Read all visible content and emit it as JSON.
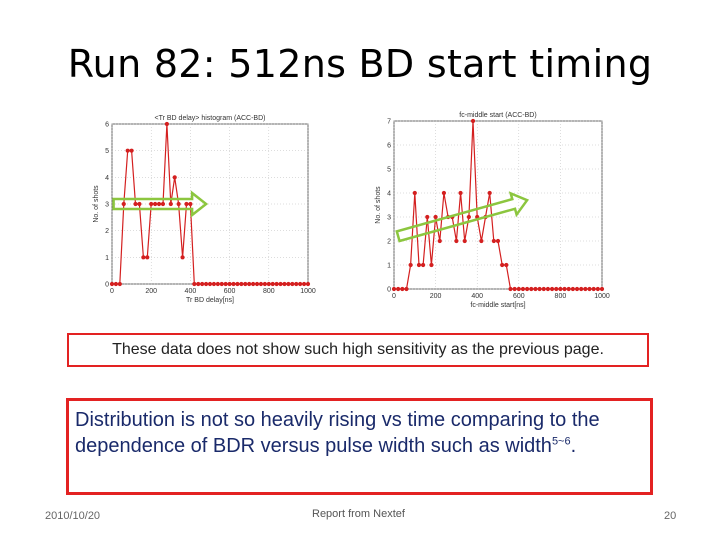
{
  "slide": {
    "title": "Run 82:  512ns  BD start timing",
    "note": "These data does not show such high sensitivity as the previous page.",
    "comment_main": "Distribution is not so heavily rising vs time comparing to the dependence of BDR versus pulse width such as width",
    "comment_sup": "5~6",
    "comment_end": ".",
    "footer_date": "2010/10/20",
    "footer_source": "Report from Nextef",
    "page_number": "20"
  },
  "colors": {
    "series": "#d42020",
    "arrow": "#8cc63f",
    "box_border": "#e32222",
    "text_blue": "#1a2a6a"
  },
  "chart_data": [
    {
      "type": "line",
      "title": "<Tr BD delay> histogram (ACC-BD)",
      "xlabel": "Tr BD delay[ns]",
      "ylabel": "No. of shots",
      "xlim": [
        0,
        1000
      ],
      "ylim": [
        0,
        6
      ],
      "xticks": [
        0,
        200,
        400,
        600,
        800,
        1000
      ],
      "xtick_labels": [
        "0",
        "200",
        "400",
        "600",
        "800",
        "1000"
      ],
      "yticks": [
        0,
        1,
        2,
        3,
        4,
        5,
        6
      ],
      "grid": true,
      "annotation": "green arrow pointing right",
      "x": [
        0,
        20,
        40,
        60,
        80,
        100,
        120,
        140,
        160,
        180,
        200,
        220,
        240,
        260,
        280,
        300,
        320,
        340,
        360,
        380,
        400,
        420,
        440,
        460,
        480,
        500,
        520,
        540,
        560,
        580,
        600,
        620,
        640,
        660,
        680,
        700,
        720,
        740,
        760,
        780,
        800,
        820,
        840,
        860,
        880,
        900,
        920,
        940,
        960,
        980,
        1000
      ],
      "y": [
        0,
        0,
        0,
        3,
        5,
        5,
        3,
        3,
        1,
        1,
        3,
        3,
        3,
        3,
        6,
        3,
        4,
        3,
        1,
        3,
        3,
        0,
        0,
        0,
        0,
        0,
        0,
        0,
        0,
        0,
        0,
        0,
        0,
        0,
        0,
        0,
        0,
        0,
        0,
        0,
        0,
        0,
        0,
        0,
        0,
        0,
        0,
        0,
        0,
        0,
        0
      ]
    },
    {
      "type": "line",
      "title": "fc-middle start (ACC-BD)",
      "xlabel": "fc-middle start[ns]",
      "ylabel": "No. of shots",
      "xlim": [
        0,
        1000
      ],
      "ylim": [
        0,
        7
      ],
      "xticks": [
        0,
        200,
        400,
        600,
        800,
        1000
      ],
      "xtick_labels": [
        "0",
        "200",
        "400",
        "600",
        "800",
        "1000"
      ],
      "yticks": [
        0,
        1,
        2,
        3,
        4,
        5,
        6,
        7
      ],
      "grid": true,
      "annotation": "green arrow rising to the right",
      "x": [
        0,
        20,
        40,
        60,
        80,
        100,
        120,
        140,
        160,
        180,
        200,
        220,
        240,
        260,
        280,
        300,
        320,
        340,
        360,
        380,
        400,
        420,
        440,
        460,
        480,
        500,
        520,
        540,
        560,
        580,
        600,
        620,
        640,
        660,
        680,
        700,
        720,
        740,
        760,
        780,
        800,
        820,
        840,
        860,
        880,
        900,
        920,
        940,
        960,
        980,
        1000
      ],
      "y": [
        0,
        0,
        0,
        0,
        1,
        4,
        1,
        1,
        3,
        1,
        3,
        2,
        4,
        3,
        3,
        2,
        4,
        2,
        3,
        7,
        3,
        2,
        3,
        4,
        2,
        2,
        1,
        1,
        0,
        0,
        0,
        0,
        0,
        0,
        0,
        0,
        0,
        0,
        0,
        0,
        0,
        0,
        0,
        0,
        0,
        0,
        0,
        0,
        0,
        0,
        0
      ]
    }
  ]
}
